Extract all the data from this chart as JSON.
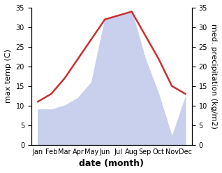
{
  "months": [
    "Jan",
    "Feb",
    "Mar",
    "Apr",
    "May",
    "Jun",
    "Jul",
    "Aug",
    "Sep",
    "Oct",
    "Nov",
    "Dec"
  ],
  "temp": [
    11,
    13,
    17,
    22,
    27,
    32,
    33,
    34,
    28,
    22,
    15,
    13
  ],
  "precip": [
    9,
    9,
    10,
    12,
    16,
    32,
    33,
    34,
    22,
    13,
    2,
    12
  ],
  "temp_color": "#c83030",
  "precip_fill_color": "#c8d0ee",
  "precip_edge_color": "#c8d0ee",
  "left_ylabel": "max temp (C)",
  "right_ylabel": "med. precipitation (kg/m2)",
  "xlabel": "date (month)",
  "ylim": [
    0,
    35
  ],
  "yticks": [
    0,
    5,
    10,
    15,
    20,
    25,
    30,
    35
  ],
  "axis_fontsize": 8,
  "tick_fontsize": 7,
  "xlabel_fontsize": 9,
  "xlabel_fontweight": "bold"
}
